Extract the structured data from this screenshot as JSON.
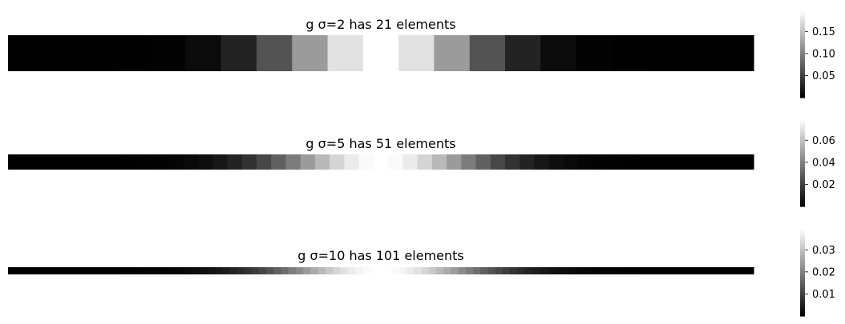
{
  "chart_data": [
    {
      "type": "heatmap",
      "title": "g σ=2 has 21 elements",
      "sigma": 2,
      "n": 21,
      "colormap": "gray",
      "colorbar_ticks": [
        0.05,
        0.1,
        0.15
      ],
      "colorbar_tick_labels": [
        "0.05",
        "0.10",
        "0.15"
      ]
    },
    {
      "type": "heatmap",
      "title": "g σ=5 has 51 elements",
      "sigma": 5,
      "n": 51,
      "colormap": "gray",
      "colorbar_ticks": [
        0.02,
        0.04,
        0.06
      ],
      "colorbar_tick_labels": [
        "0.02",
        "0.04",
        "0.06"
      ]
    },
    {
      "type": "heatmap",
      "title": "g σ=10 has 101 elements",
      "sigma": 10,
      "n": 101,
      "colormap": "gray",
      "colorbar_ticks": [
        0.01,
        0.02,
        0.03
      ],
      "colorbar_tick_labels": [
        "0.01",
        "0.02",
        "0.03"
      ]
    }
  ]
}
